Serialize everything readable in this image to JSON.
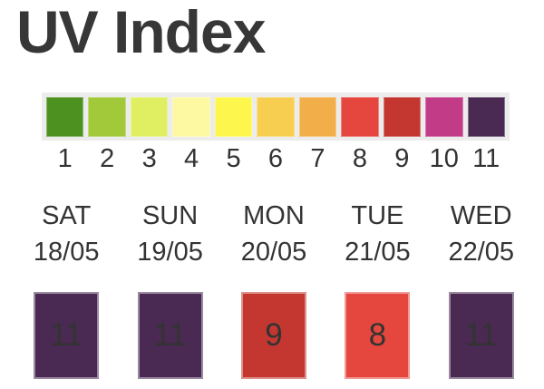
{
  "title": "UV Index",
  "text_color": "#333333",
  "scale": {
    "track_color": "#ececec",
    "levels": [
      {
        "value": "1",
        "color": "#4d9221"
      },
      {
        "value": "2",
        "color": "#a2c93a"
      },
      {
        "value": "3",
        "color": "#e0ee62"
      },
      {
        "value": "4",
        "color": "#fdf9a3"
      },
      {
        "value": "5",
        "color": "#fcf64d"
      },
      {
        "value": "6",
        "color": "#f8ce50"
      },
      {
        "value": "7",
        "color": "#f2ae48"
      },
      {
        "value": "8",
        "color": "#e5473e"
      },
      {
        "value": "9",
        "color": "#c33730"
      },
      {
        "value": "10",
        "color": "#c23b87"
      },
      {
        "value": "11",
        "color": "#4a2a52"
      }
    ]
  },
  "forecast": {
    "days": [
      {
        "day": "SAT",
        "date": "18/05",
        "value": "11",
        "color": "#4a2a52"
      },
      {
        "day": "SUN",
        "date": "19/05",
        "value": "11",
        "color": "#4a2a52"
      },
      {
        "day": "MON",
        "date": "20/05",
        "value": "9",
        "color": "#c33730"
      },
      {
        "day": "TUE",
        "date": "21/05",
        "value": "8",
        "color": "#e5473e"
      },
      {
        "day": "WED",
        "date": "22/05",
        "value": "11",
        "color": "#4a2a52"
      }
    ]
  },
  "chart_data": {
    "type": "heatmap",
    "title": "UV Index",
    "categories": [
      "SAT 18/05",
      "SUN 19/05",
      "MON 20/05",
      "TUE 21/05",
      "WED 22/05"
    ],
    "values": [
      11,
      11,
      9,
      8,
      11
    ],
    "scale_ticks": [
      1,
      2,
      3,
      4,
      5,
      6,
      7,
      8,
      9,
      10,
      11
    ],
    "scale_colors": [
      "#4d9221",
      "#a2c93a",
      "#e0ee62",
      "#fdf9a3",
      "#fcf64d",
      "#f8ce50",
      "#f2ae48",
      "#e5473e",
      "#c33730",
      "#c23b87",
      "#4a2a52"
    ],
    "legend_position": "top",
    "value_range": [
      1,
      11
    ]
  }
}
